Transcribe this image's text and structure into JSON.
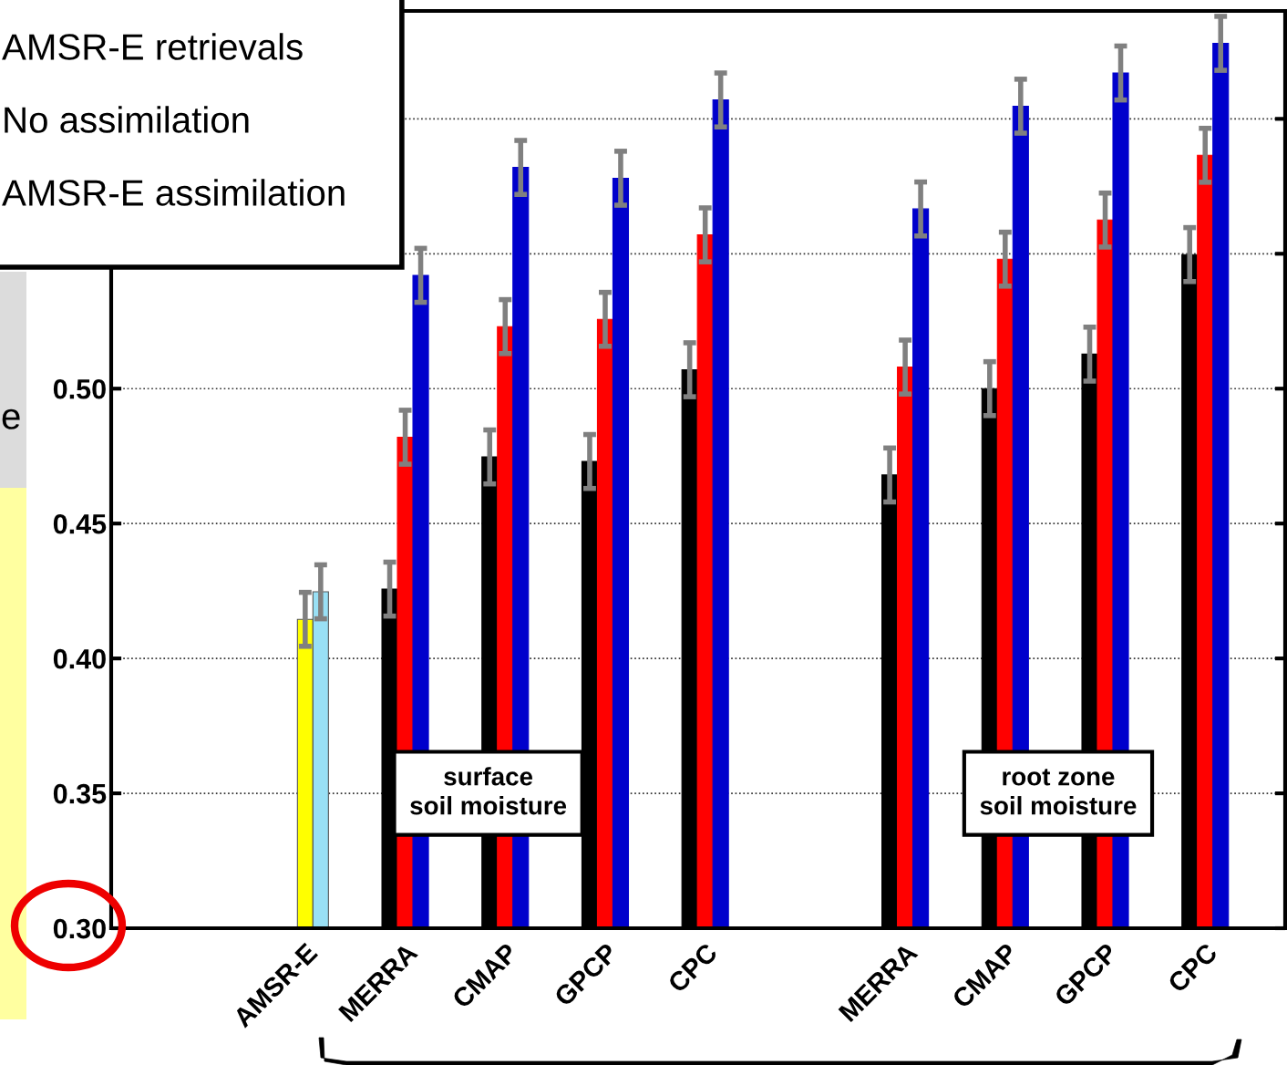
{
  "chart_data": {
    "type": "bar",
    "categories": [
      "AMSR-E",
      "MERRA",
      "CMAP",
      "GPCP",
      "CPC",
      null,
      "MERRA",
      "CMAP",
      "GPCP",
      "CPC"
    ],
    "series": [
      {
        "color": "#ffff00",
        "values": [
          0.4145,
          null,
          null,
          null,
          null,
          null,
          null,
          null,
          null,
          null
        ],
        "errors": [
          0.01,
          null,
          null,
          null,
          null,
          null,
          null,
          null,
          null,
          null
        ]
      },
      {
        "color": "#99e0f5",
        "values": [
          0.4247,
          null,
          null,
          null,
          null,
          null,
          null,
          null,
          null,
          null
        ],
        "errors": [
          0.01,
          null,
          null,
          null,
          null,
          null,
          null,
          null,
          null,
          null
        ]
      },
      {
        "color": "#000000",
        "values": [
          null,
          0.4257,
          0.4747,
          0.473,
          0.507,
          null,
          0.468,
          0.5,
          0.5128,
          0.5497
        ],
        "errors": [
          null,
          0.01,
          0.01,
          0.01,
          0.01,
          null,
          0.01,
          0.01,
          0.01,
          0.01
        ]
      },
      {
        "color": "#ff0000",
        "values": [
          null,
          0.482,
          0.523,
          0.5257,
          0.557,
          null,
          0.508,
          0.548,
          0.5625,
          0.5865
        ],
        "errors": [
          null,
          0.01,
          0.01,
          0.01,
          0.01,
          null,
          0.01,
          0.01,
          0.01,
          0.01
        ]
      },
      {
        "color": "#0000cc",
        "values": [
          null,
          0.542,
          0.582,
          0.578,
          0.607,
          null,
          0.5666,
          0.6047,
          0.617,
          0.628
        ],
        "errors": [
          null,
          0.01,
          0.01,
          0.01,
          0.01,
          null,
          0.01,
          0.01,
          0.01,
          0.01
        ]
      }
    ],
    "ylim": [
      0.3,
      0.64
    ],
    "yticks": [
      {
        "value": 0.3,
        "label": "0.30"
      },
      {
        "value": 0.35,
        "label": "0.35"
      },
      {
        "value": 0.4,
        "label": "0.40"
      },
      {
        "value": 0.45,
        "label": "0.45"
      },
      {
        "value": 0.5,
        "label": "0.50"
      },
      {
        "value": 0.55,
        "label": null
      },
      {
        "value": 0.6,
        "label": null
      }
    ],
    "grid": "y",
    "annotations": [
      "AMSR-E retrievals",
      "No assimilation",
      "AMSR-E assimilation",
      "surface\nsoil moisture",
      "root zone\nsoil moisture",
      "e"
    ]
  }
}
